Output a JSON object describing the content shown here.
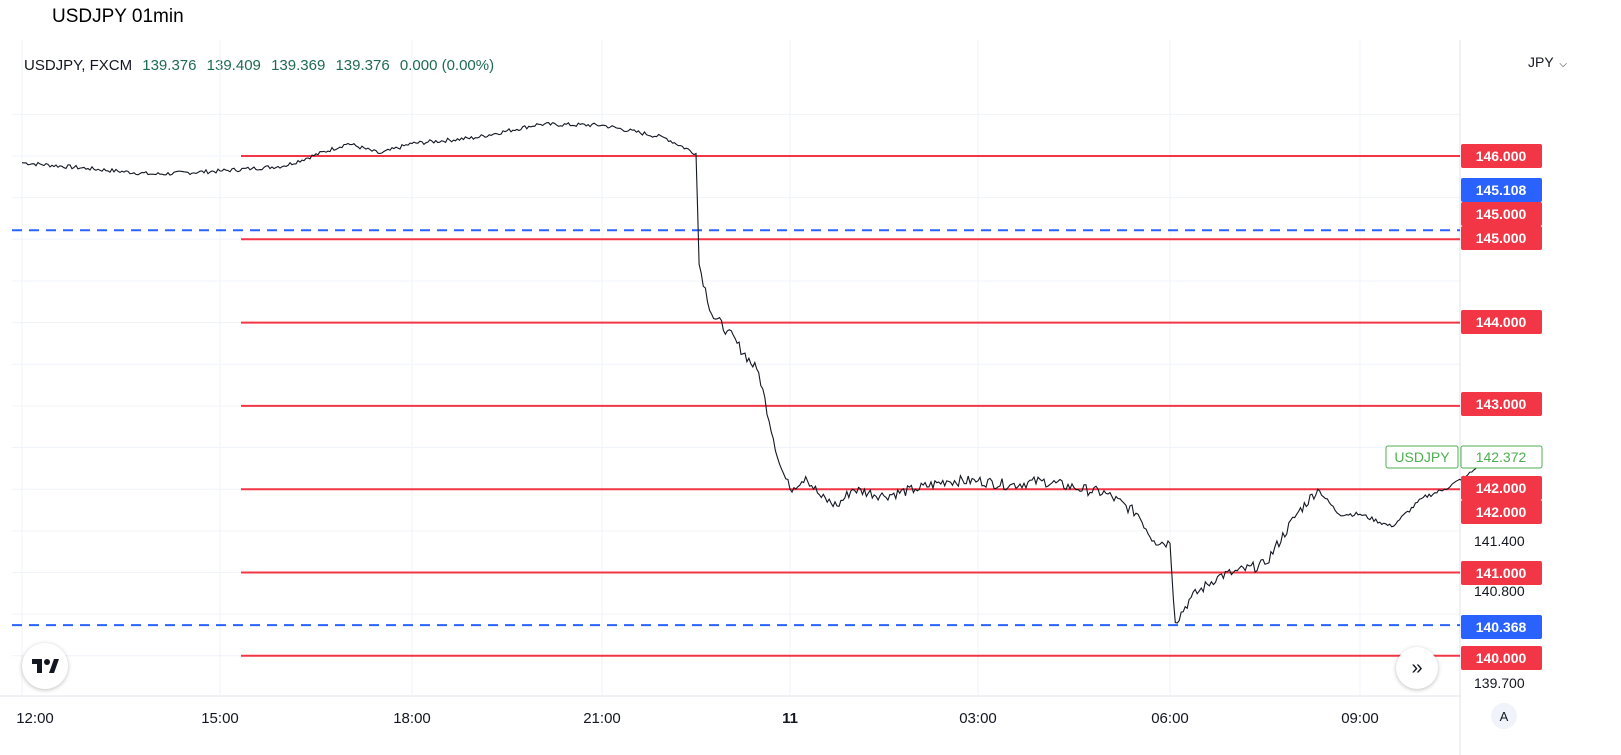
{
  "title": "USDJPY 01min",
  "legend": {
    "symbol": "USDJPY, FXCM",
    "open": "139.376",
    "high": "139.409",
    "low": "139.369",
    "close": "139.376",
    "change": "0.000 (0.00%)"
  },
  "currency_selector": "JPY",
  "auto_button": "A",
  "icons": {
    "logo": "tradingview-logo-icon",
    "scroll": "scroll-to-realtime-icon"
  },
  "colors": {
    "horizontal_line": "#f23645",
    "dashed_line": "#2962ff",
    "price_line": "#131722",
    "price_tag": "#4caf50"
  },
  "chart_data": {
    "type": "line",
    "series": [
      {
        "name": "USDJPY",
        "points": [
          [
            "12:00",
            145.92
          ],
          [
            "13:00",
            145.85
          ],
          [
            "14:00",
            145.78
          ],
          [
            "15:00",
            145.82
          ],
          [
            "15:30",
            145.85
          ],
          [
            "16:00",
            145.88
          ],
          [
            "17:00",
            146.15
          ],
          [
            "17:30",
            146.03
          ],
          [
            "18:00",
            146.15
          ],
          [
            "19:00",
            146.22
          ],
          [
            "20:00",
            146.38
          ],
          [
            "21:00",
            146.37
          ],
          [
            "22:00",
            146.22
          ],
          [
            "22:30",
            146.03
          ],
          [
            "22:33",
            144.7
          ],
          [
            "22:45",
            144.1
          ],
          [
            "23:00",
            143.9
          ],
          [
            "23:30",
            143.4
          ],
          [
            "23:50",
            142.3
          ],
          [
            "00:00",
            142.0
          ],
          [
            "00:15",
            142.15
          ],
          [
            "00:30",
            141.9
          ],
          [
            "00:45",
            141.8
          ],
          [
            "01:00",
            142.0
          ],
          [
            "01:30",
            141.92
          ],
          [
            "02:00",
            142.0
          ],
          [
            "02:30",
            142.1
          ],
          [
            "03:00",
            142.1
          ],
          [
            "03:30",
            142.05
          ],
          [
            "04:00",
            142.1
          ],
          [
            "04:30",
            142.02
          ],
          [
            "05:00",
            141.95
          ],
          [
            "05:30",
            141.7
          ],
          [
            "05:45",
            141.38
          ],
          [
            "06:00",
            141.35
          ],
          [
            "06:05",
            140.4
          ],
          [
            "06:20",
            140.7
          ],
          [
            "06:45",
            140.95
          ],
          [
            "07:00",
            141.0
          ],
          [
            "07:30",
            141.1
          ],
          [
            "08:00",
            141.7
          ],
          [
            "08:20",
            142.0
          ],
          [
            "08:40",
            141.7
          ],
          [
            "09:00",
            141.7
          ],
          [
            "09:30",
            141.55
          ],
          [
            "10:00",
            141.9
          ],
          [
            "10:20",
            142.0
          ],
          [
            "10:40",
            142.15
          ],
          [
            "10:50",
            142.25
          ]
        ]
      }
    ],
    "horizontal_lines": [
      146.0,
      145.0,
      144.0,
      143.0,
      142.0,
      141.0,
      140.0
    ],
    "dashed_lines": [
      145.108,
      140.368
    ],
    "price_axis_labels": [
      {
        "label": "146.000",
        "style": "red"
      },
      {
        "label": "145.108",
        "style": "blue"
      },
      {
        "label": "145.000",
        "style": "red"
      },
      {
        "label": "145.000",
        "style": "red"
      },
      {
        "label": "144.000",
        "style": "red"
      },
      {
        "label": "143.000",
        "style": "red"
      },
      {
        "label": "142.372",
        "style": "current"
      },
      {
        "label": "142.000",
        "style": "red"
      },
      {
        "label": "142.000",
        "style": "red"
      },
      {
        "label": "141.400",
        "style": "tick"
      },
      {
        "label": "141.000",
        "style": "red"
      },
      {
        "label": "140.800",
        "style": "tick"
      },
      {
        "label": "140.368",
        "style": "blue"
      },
      {
        "label": "140.000",
        "style": "red"
      },
      {
        "label": "139.700",
        "style": "tick"
      }
    ],
    "current_price": {
      "symbol": "USDJPY",
      "value": "142.372"
    },
    "x_ticks": [
      "12:00",
      "15:00",
      "18:00",
      "21:00",
      "11",
      "03:00",
      "06:00",
      "09:00"
    ],
    "grid": true
  }
}
